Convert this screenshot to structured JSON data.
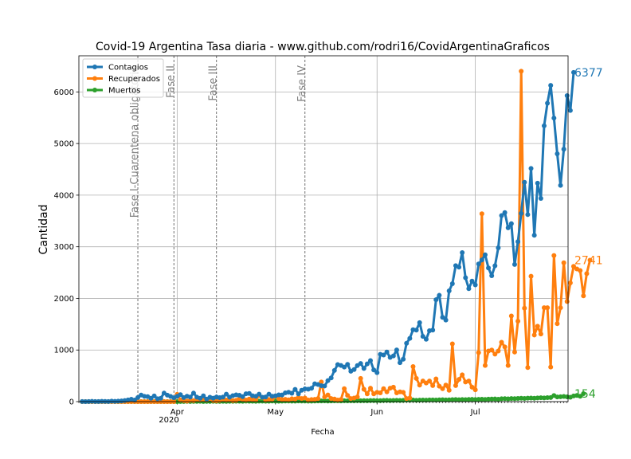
{
  "chart_data": {
    "type": "line",
    "title": "Covid-19 Argentina Tasa diaria - www.github.com/rodri16/CovidArgentinaGraficos",
    "xlabel": "Fecha",
    "ylabel": "Cantidad",
    "x_start_date": "2020-03-03",
    "x_end_date": "2020-07-29",
    "ylim": [
      0,
      6700
    ],
    "y_ticks": [
      "0",
      "1000",
      "2000",
      "3000",
      "4000",
      "5000",
      "6000"
    ],
    "y_tick_values": [
      0,
      1000,
      2000,
      3000,
      4000,
      5000,
      6000
    ],
    "x_ticks": [
      {
        "label": "Apr",
        "date": "2020-04-01"
      },
      {
        "label": "May",
        "date": "2020-05-01"
      },
      {
        "label": "Jun",
        "date": "2020-06-01"
      },
      {
        "label": "Jul",
        "date": "2020-07-01"
      }
    ],
    "x_year_label": "2020",
    "grid": true,
    "legend_position": "top-left",
    "phases": [
      {
        "label": "Fase I-Cuarentena obligatoria",
        "date": "2020-03-20"
      },
      {
        "label": "Fase II",
        "date": "2020-03-31"
      },
      {
        "label": "Fase III",
        "date": "2020-04-13"
      },
      {
        "label": "Fase IV",
        "date": "2020-05-10"
      }
    ],
    "series": [
      {
        "name": "Contagios",
        "color": "#1f77b4",
        "last_value_label": "6377",
        "values": [
          1,
          0,
          1,
          5,
          1,
          2,
          5,
          4,
          2,
          9,
          5,
          10,
          14,
          22,
          32,
          46,
          31,
          80,
          128,
          102,
          97,
          66,
          110,
          56,
          66,
          165,
          125,
          101,
          76,
          103,
          136,
          79,
          104,
          88,
          165,
          87,
          65,
          112,
          48,
          85,
          67,
          88,
          78,
          89,
          144,
          87,
          115,
          132,
          123,
          97,
          153,
          158,
          113,
          105,
          145,
          84,
          90,
          144,
          104,
          112,
          132,
          129,
          170,
          182,
          163,
          237,
          150,
          220,
          247,
          241,
          258,
          345,
          331,
          308,
          302,
          408,
          460,
          604,
          718,
          701,
          669,
          721,
          589,
          621,
          699,
          739,
          642,
          731,
          795,
          613,
          562,
          917,
          904,
          961,
          856,
          885,
          1001,
          755,
          822,
          1130,
          1226,
          1393,
          1386,
          1531,
          1264,
          1208,
          1374,
          1385,
          1974,
          2060,
          1632,
          1581,
          2146,
          2285,
          2635,
          2606,
          2886,
          2401,
          2189,
          2335,
          2262,
          2667,
          2744,
          2845,
          2590,
          2439,
          2632,
          2979,
          3604,
          3663,
          3367,
          3449,
          2657,
          3099,
          3645,
          4250,
          3623,
          4518,
          3223,
          4231,
          3937,
          5344,
          5782,
          6127,
          5493,
          4802,
          4190,
          4890,
          5929,
          5641,
          6377
        ]
      },
      {
        "name": "Recuperados",
        "color": "#ff7f0e",
        "last_value_label": "2741",
        "values": [
          0,
          0,
          0,
          0,
          0,
          0,
          0,
          0,
          0,
          0,
          0,
          0,
          0,
          0,
          0,
          0,
          0,
          0,
          0,
          0,
          0,
          0,
          0,
          0,
          0,
          0,
          0,
          0,
          0,
          140,
          30,
          20,
          10,
          25,
          20,
          40,
          35,
          45,
          30,
          60,
          20,
          15,
          25,
          40,
          30,
          35,
          20,
          25,
          60,
          45,
          30,
          50,
          40,
          35,
          120,
          80,
          30,
          40,
          50,
          100,
          60,
          40,
          45,
          35,
          55,
          50,
          80,
          60,
          70,
          30,
          40,
          45,
          60,
          380,
          90,
          130,
          60,
          50,
          30,
          40,
          250,
          120,
          60,
          70,
          90,
          450,
          240,
          150,
          260,
          150,
          180,
          170,
          250,
          190,
          260,
          280,
          170,
          190,
          180,
          60,
          70,
          680,
          450,
          320,
          400,
          360,
          400,
          310,
          440,
          300,
          250,
          320,
          220,
          1120,
          310,
          430,
          520,
          380,
          400,
          280,
          230,
          950,
          3640,
          700,
          980,
          1000,
          920,
          980,
          1150,
          1060,
          700,
          1660,
          960,
          1560,
          6400,
          1810,
          660,
          2430,
          1290,
          1460,
          1310,
          1820,
          1820,
          670,
          2830,
          1510,
          1820,
          2690,
          1940,
          2300,
          2620,
          2570,
          2540,
          2050,
          2480,
          2741
        ]
      },
      {
        "name": "Muertos",
        "color": "#2ca02c",
        "last_value_label": "154",
        "values": [
          0,
          0,
          0,
          0,
          0,
          0,
          0,
          0,
          0,
          0,
          0,
          0,
          0,
          0,
          0,
          0,
          0,
          0,
          0,
          0,
          0,
          0,
          0,
          0,
          0,
          0,
          0,
          0,
          0,
          0,
          2,
          1,
          3,
          2,
          4,
          3,
          5,
          2,
          4,
          3,
          6,
          4,
          3,
          5,
          4,
          6,
          5,
          7,
          8,
          6,
          9,
          7,
          8,
          6,
          10,
          9,
          8,
          7,
          11,
          9,
          8,
          10,
          12,
          11,
          9,
          10,
          13,
          12,
          11,
          10,
          9,
          12,
          14,
          13,
          15,
          12,
          14,
          16,
          15,
          13,
          17,
          16,
          18,
          15,
          19,
          17,
          20,
          18,
          21,
          22,
          20,
          19,
          23,
          25,
          22,
          24,
          26,
          23,
          25,
          28,
          27,
          30,
          26,
          29,
          31,
          28,
          32,
          33,
          30,
          34,
          36,
          32,
          35,
          38,
          40,
          37,
          41,
          39,
          42,
          44,
          40,
          45,
          47,
          43,
          48,
          50,
          52,
          46,
          55,
          58,
          54,
          60,
          57,
          62,
          65,
          61,
          68,
          70,
          66,
          72,
          75,
          71,
          78,
          80,
          118,
          90,
          95,
          100,
          92,
          85,
          110,
          120,
          105,
          154
        ]
      }
    ]
  }
}
